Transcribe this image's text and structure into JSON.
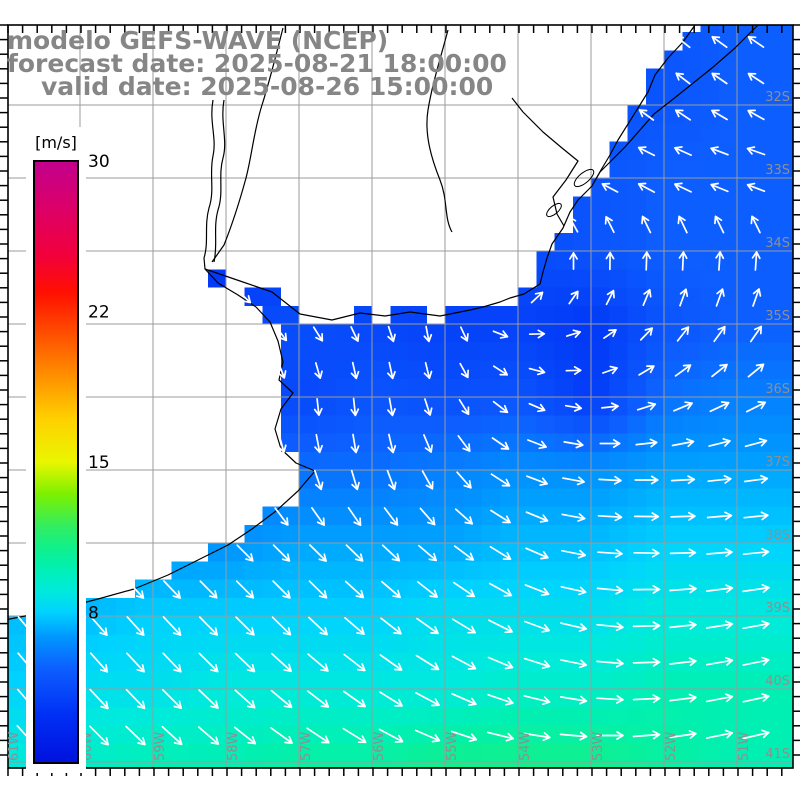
{
  "title": {
    "line1": "modelo GEFS-WAVE (NCEP)",
    "line2": "forecast date: 2025-08-21 18:00:00",
    "line3": "valid date: 2025-08-26 15:00:00"
  },
  "colorbar": {
    "unit_label": "[m/s]",
    "min": 0,
    "max": 30,
    "ticks": [
      {
        "label": "30",
        "value": 30
      },
      {
        "label": "22",
        "value": 22
      },
      {
        "label": "15",
        "value": 15
      },
      {
        "label": "8",
        "value": 8
      }
    ],
    "gradient": [
      [
        0,
        "#0011dd"
      ],
      [
        2.6,
        "#0030f5"
      ],
      [
        5,
        "#0d5eff"
      ],
      [
        6.7,
        "#0097ff"
      ],
      [
        8,
        "#00d2ff"
      ],
      [
        9,
        "#00eadd"
      ],
      [
        10,
        "#00f0b4"
      ],
      [
        11,
        "#10f08c"
      ],
      [
        12,
        "#30ee60"
      ],
      [
        13.5,
        "#7cf000"
      ],
      [
        15,
        "#eaf600"
      ],
      [
        17,
        "#ffd000"
      ],
      [
        19,
        "#ff9000"
      ],
      [
        21,
        "#ff4d00"
      ],
      [
        23,
        "#ff1000"
      ],
      [
        25,
        "#f2003c"
      ],
      [
        27.5,
        "#dc0068"
      ],
      [
        30,
        "#c2008e"
      ]
    ]
  },
  "axes": {
    "lon_labels": [
      "61W",
      "60W",
      "59W",
      "58W",
      "57W",
      "56W",
      "55W",
      "54W",
      "53W",
      "52W",
      "51W"
    ],
    "lat_labels": [
      "32S",
      "33S",
      "34S",
      "35S",
      "36S",
      "37S",
      "38S",
      "39S",
      "40S",
      "41S"
    ]
  },
  "chart_data": {
    "type": "heatmap",
    "field": "wind/wave speed [m/s] with direction vectors",
    "legend": "[m/s]",
    "extent": {
      "lon_W": [
        61,
        50.2
      ],
      "lat_S": [
        30.9,
        41.1
      ]
    },
    "cell_size_deg": 0.25,
    "arrow_spacing_deg": 0.5,
    "lons_W": [
      61,
      60,
      59,
      58,
      57,
      56,
      55,
      54,
      53,
      52,
      51
    ],
    "lats_S": [
      31,
      32,
      33,
      34,
      35,
      36,
      37,
      38,
      39,
      40,
      41
    ],
    "speed_ms": [
      [
        5,
        5,
        5,
        5,
        4.5,
        4.5,
        4.5,
        4.5,
        4.5,
        4.5,
        5
      ],
      [
        4.5,
        4.5,
        4.5,
        4.5,
        4.5,
        4.5,
        4.5,
        4.5,
        4.5,
        4.5,
        5
      ],
      [
        4,
        4,
        4,
        4,
        4,
        4,
        4,
        4,
        4.5,
        5,
        5
      ],
      [
        2.5,
        2.5,
        2.5,
        2.5,
        3,
        3.5,
        3.8,
        4,
        4.5,
        5,
        5
      ],
      [
        4,
        4,
        4,
        4,
        4.2,
        3.8,
        3.5,
        3.5,
        3,
        4.5,
        5
      ],
      [
        4.5,
        4.5,
        4.5,
        4.5,
        3.8,
        4.5,
        4.2,
        4.5,
        3.2,
        5.5,
        6
      ],
      [
        5.5,
        5.5,
        5.5,
        5.5,
        5.5,
        5.5,
        6,
        6.5,
        6.5,
        7,
        7
      ],
      [
        6.5,
        6.5,
        6.5,
        6.5,
        7,
        7,
        7,
        7.5,
        7.5,
        8,
        8
      ],
      [
        7.5,
        7.5,
        8,
        8,
        8,
        8,
        8.5,
        8.5,
        8.5,
        9,
        9
      ],
      [
        8,
        8.5,
        8.5,
        9,
        9,
        9,
        9,
        9.5,
        9.5,
        10,
        10
      ],
      [
        9,
        9.5,
        10,
        10,
        10.5,
        10.5,
        11,
        11,
        11,
        10.5,
        10
      ]
    ],
    "dir_deg_toward": [
      [
        140,
        140,
        140,
        140,
        140,
        140,
        140,
        140,
        140,
        140,
        145
      ],
      [
        140,
        140,
        140,
        140,
        140,
        140,
        140,
        140,
        140,
        142,
        148
      ],
      [
        170,
        170,
        170,
        170,
        170,
        170,
        170,
        175,
        160,
        160,
        168
      ],
      [
        -35,
        -35,
        -35,
        -35,
        -40,
        -45,
        110,
        100,
        95,
        92,
        90
      ],
      [
        -45,
        -45,
        -45,
        -45,
        -50,
        -65,
        -85,
        0,
        30,
        55,
        60
      ],
      [
        -60,
        -60,
        -60,
        -70,
        -85,
        -85,
        -70,
        -30,
        0,
        25,
        30
      ],
      [
        -55,
        -55,
        -55,
        -60,
        -75,
        -80,
        -60,
        -25,
        -5,
        2,
        8
      ],
      [
        -45,
        -45,
        -45,
        -45,
        -45,
        -45,
        -40,
        -30,
        -5,
        0,
        5
      ],
      [
        -50,
        -50,
        -48,
        -45,
        -45,
        -40,
        -35,
        -25,
        -10,
        5,
        10
      ],
      [
        -50,
        -48,
        -46,
        -44,
        -40,
        -35,
        -28,
        -18,
        -8,
        5,
        12
      ],
      [
        -48,
        -45,
        -42,
        -38,
        -32,
        -28,
        -18,
        -8,
        0,
        8,
        14
      ]
    ]
  },
  "colors": {
    "land": "#ffffff",
    "coastline": "#000000",
    "grid_line": "#9b9b9b",
    "arrow": "#ffffff",
    "frame": "#000000",
    "title_text": "#868686",
    "axis_label_text": "#8f8f8f"
  }
}
